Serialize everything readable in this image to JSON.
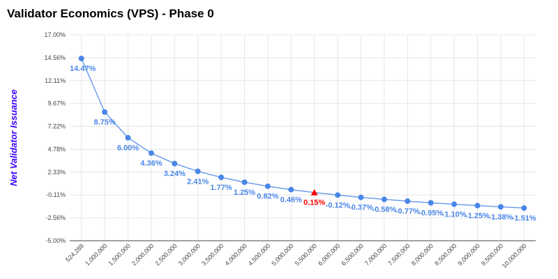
{
  "chart_data": {
    "type": "line",
    "title": "Validator Economics (VPS) - Phase 0",
    "xlabel": "",
    "ylabel": "Net Validator Issuance",
    "ylim": [
      -5.0,
      17.0
    ],
    "y_ticks": [
      "17.00%",
      "14.56%",
      "12.11%",
      "9.67%",
      "7.22%",
      "4.78%",
      "2.33%",
      "-0.11%",
      "-2.56%",
      "-5.00%"
    ],
    "x": [
      "524,288",
      "1,000,000",
      "1,500,000",
      "2,000,000",
      "2,500,000",
      "3,000,000",
      "3,500,000",
      "4,000,000",
      "4,500,000",
      "5,000,000",
      "5,500,000",
      "6,000,000",
      "6,500,000",
      "7,000,000",
      "7,500,000",
      "8,000,000",
      "8,500,000",
      "9,000,000",
      "9,500,000",
      "10,000,000"
    ],
    "series": [
      {
        "values": [
          14.47,
          8.75,
          6.0,
          4.36,
          3.24,
          2.41,
          1.77,
          1.25,
          0.82,
          0.46,
          0.15,
          -0.12,
          -0.37,
          -0.58,
          -0.77,
          -0.95,
          -1.1,
          -1.25,
          -1.38,
          -1.51
        ],
        "labels": [
          "14.47%",
          "8.75%",
          "6.00%",
          "4.36%",
          "3.24%",
          "2.41%",
          "1.77%",
          "1.25%",
          "0.82%",
          "0.46%",
          "0.15%",
          "-0.12%",
          "-0.37%",
          "-0.58%",
          "-0.77%",
          "-0.95%",
          "-1.10%",
          "-1.25%",
          "-1.38%",
          "-1.51%"
        ]
      }
    ],
    "highlight_index": 10,
    "grid": true,
    "legend": "none",
    "colors": {
      "line": "#6d9eeb",
      "point": "#4a86e8",
      "label": "#4a86e8",
      "highlight": "#ff0000",
      "ylabel": "#3c00ff",
      "grid": "#e6e6e6"
    }
  }
}
